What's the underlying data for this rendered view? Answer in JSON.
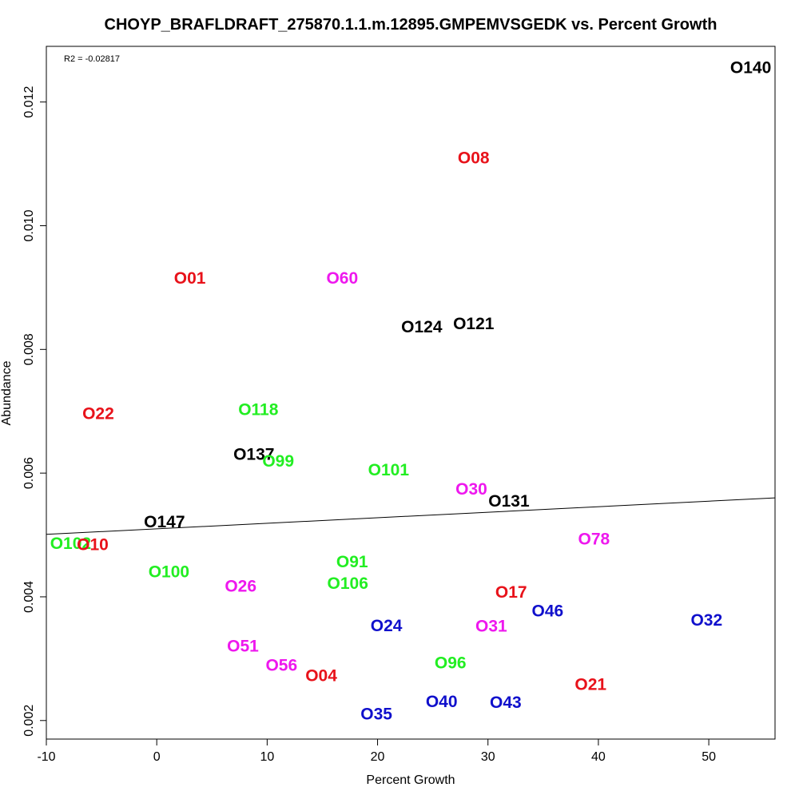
{
  "chart_data": {
    "type": "scatter",
    "title": "CHOYP_BRAFLDRAFT_275870.1.1.m.12895.GMPEMVSGEDK vs. Percent Growth",
    "xlabel": "Percent Growth",
    "ylabel": "Abundance",
    "xlim": [
      -10,
      56
    ],
    "ylim": [
      0.0017,
      0.0129
    ],
    "xticks": [
      -10,
      0,
      10,
      20,
      30,
      40,
      50
    ],
    "yticks": [
      0.002,
      0.004,
      0.006,
      0.008,
      0.01,
      0.012
    ],
    "ytick_labels": [
      "0.002",
      "0.004",
      "0.006",
      "0.008",
      "0.010",
      "0.012"
    ],
    "annotation": "R2 = -0.02817",
    "grid": false,
    "regression_line": {
      "x": [
        -10,
        56
      ],
      "y": [
        0.00501,
        0.0056
      ]
    },
    "colors": {
      "red": "#e8121a",
      "green": "#22ee22",
      "magenta": "#ee18ee",
      "blue": "#1010cc",
      "black": "#000000"
    },
    "points": [
      {
        "label": "O140",
        "x": 53.8,
        "y": 0.01255,
        "color": "black"
      },
      {
        "label": "O08",
        "x": 28.7,
        "y": 0.01109,
        "color": "red"
      },
      {
        "label": "O01",
        "x": 3.0,
        "y": 0.00915,
        "color": "red"
      },
      {
        "label": "O60",
        "x": 16.8,
        "y": 0.00915,
        "color": "magenta"
      },
      {
        "label": "O124",
        "x": 24.0,
        "y": 0.00836,
        "color": "black"
      },
      {
        "label": "O121",
        "x": 28.7,
        "y": 0.00841,
        "color": "black"
      },
      {
        "label": "O22",
        "x": -5.3,
        "y": 0.00696,
        "color": "red"
      },
      {
        "label": "O118",
        "x": 9.2,
        "y": 0.00702,
        "color": "green"
      },
      {
        "label": "O137",
        "x": 8.8,
        "y": 0.0063,
        "color": "black"
      },
      {
        "label": "O99",
        "x": 11.0,
        "y": 0.00619,
        "color": "green"
      },
      {
        "label": "O101",
        "x": 21.0,
        "y": 0.00605,
        "color": "green"
      },
      {
        "label": "O30",
        "x": 28.5,
        "y": 0.00574,
        "color": "magenta"
      },
      {
        "label": "O131",
        "x": 31.9,
        "y": 0.00554,
        "color": "black"
      },
      {
        "label": "O147",
        "x": 0.7,
        "y": 0.00521,
        "color": "black"
      },
      {
        "label": "O102",
        "x": -7.8,
        "y": 0.00486,
        "color": "green"
      },
      {
        "label": "O10",
        "x": -5.8,
        "y": 0.00484,
        "color": "red"
      },
      {
        "label": "O78",
        "x": 39.6,
        "y": 0.00493,
        "color": "magenta"
      },
      {
        "label": "O100",
        "x": 1.1,
        "y": 0.0044,
        "color": "green"
      },
      {
        "label": "O91",
        "x": 17.7,
        "y": 0.00456,
        "color": "green"
      },
      {
        "label": "O26",
        "x": 7.6,
        "y": 0.00417,
        "color": "magenta"
      },
      {
        "label": "O106",
        "x": 17.3,
        "y": 0.00421,
        "color": "green"
      },
      {
        "label": "O17",
        "x": 32.1,
        "y": 0.00407,
        "color": "red"
      },
      {
        "label": "O46",
        "x": 35.4,
        "y": 0.00377,
        "color": "blue"
      },
      {
        "label": "O32",
        "x": 49.8,
        "y": 0.00362,
        "color": "blue"
      },
      {
        "label": "O24",
        "x": 20.8,
        "y": 0.00353,
        "color": "blue"
      },
      {
        "label": "O31",
        "x": 30.3,
        "y": 0.00352,
        "color": "magenta"
      },
      {
        "label": "O51",
        "x": 7.8,
        "y": 0.0032,
        "color": "magenta"
      },
      {
        "label": "O56",
        "x": 11.3,
        "y": 0.00289,
        "color": "magenta"
      },
      {
        "label": "O96",
        "x": 26.6,
        "y": 0.00293,
        "color": "green"
      },
      {
        "label": "O04",
        "x": 14.9,
        "y": 0.00272,
        "color": "red"
      },
      {
        "label": "O21",
        "x": 39.3,
        "y": 0.00258,
        "color": "red"
      },
      {
        "label": "O40",
        "x": 25.8,
        "y": 0.0023,
        "color": "blue"
      },
      {
        "label": "O43",
        "x": 31.6,
        "y": 0.00229,
        "color": "blue"
      },
      {
        "label": "O35",
        "x": 19.9,
        "y": 0.0021,
        "color": "blue"
      }
    ]
  }
}
